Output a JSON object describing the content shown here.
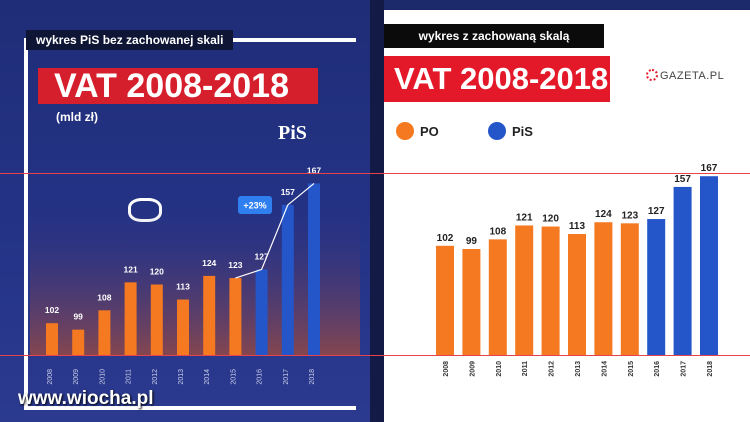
{
  "left": {
    "tag": "wykres PiS bez zachowanej skali",
    "title": "VAT 2008-2018",
    "unit": "(mld zł)",
    "pis_logo": "PiS",
    "growth_label": "+23%"
  },
  "right": {
    "tag": "wykres z zachowaną skalą",
    "title": "VAT 2008-2018",
    "brand": "GAZETA.PL",
    "legend": [
      {
        "label": "PO",
        "color": "#f47920"
      },
      {
        "label": "PiS",
        "color": "#2456c9"
      }
    ]
  },
  "watermark": "www.wiocha.pl",
  "colors": {
    "po": "#f47920",
    "pis": "#2456c9",
    "accent": "#e3192a"
  },
  "chart_data": [
    {
      "type": "bar",
      "title": "VAT 2008-2018",
      "ylabel": "(mld zł)",
      "categories": [
        "2008",
        "2009",
        "2010",
        "2011",
        "2012",
        "2013",
        "2014",
        "2015",
        "2016",
        "2017",
        "2018"
      ],
      "values": [
        102,
        99,
        108,
        121,
        120,
        113,
        124,
        123,
        127,
        157,
        167
      ],
      "party": [
        "PO",
        "PO",
        "PO",
        "PO",
        "PO",
        "PO",
        "PO",
        "PO",
        "PiS",
        "PiS",
        "PiS"
      ],
      "ylim": [
        90,
        170
      ],
      "annotation": "+23%"
    },
    {
      "type": "bar",
      "title": "VAT 2008-2018",
      "categories": [
        "2008",
        "2009",
        "2010",
        "2011",
        "2012",
        "2013",
        "2014",
        "2015",
        "2016",
        "2017",
        "2018"
      ],
      "values": [
        102,
        99,
        108,
        121,
        120,
        113,
        124,
        123,
        127,
        157,
        167
      ],
      "party": [
        "PO",
        "PO",
        "PO",
        "PO",
        "PO",
        "PO",
        "PO",
        "PO",
        "PiS",
        "PiS",
        "PiS"
      ],
      "ylim": [
        0,
        170
      ],
      "legend": [
        "PO",
        "PiS"
      ]
    }
  ]
}
